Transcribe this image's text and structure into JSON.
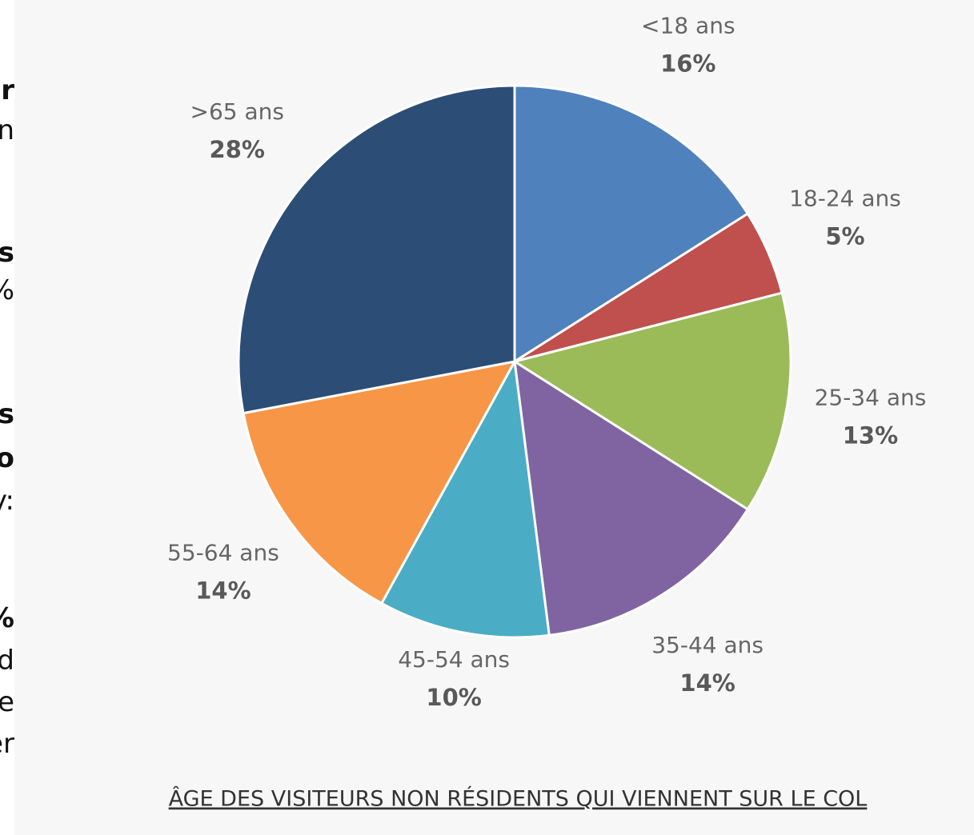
{
  "side_text": [
    "or",
    "n",
    "us",
    "%",
    "es",
    "co",
    "y:",
    "%",
    "d",
    "te",
    "er"
  ],
  "chart_data": {
    "type": "pie",
    "title": "ÂGE DES VISITEURS NON RÉSIDENTS QUI VIENNENT SUR LE COL",
    "categories": [
      "<18 ans",
      "18-24 ans",
      "25-34 ans",
      "35-44 ans",
      "45-54 ans",
      "55-64 ans",
      ">65 ans"
    ],
    "values": [
      16,
      5,
      13,
      14,
      10,
      14,
      28
    ],
    "value_labels": [
      "16%",
      "5%",
      "13%",
      "14%",
      "10%",
      "14%",
      "28%"
    ],
    "colors": [
      "#4f81bd",
      "#c0504d",
      "#9bbb59",
      "#8064a2",
      "#4bacc6",
      "#f79646",
      "#2c4d75"
    ]
  }
}
